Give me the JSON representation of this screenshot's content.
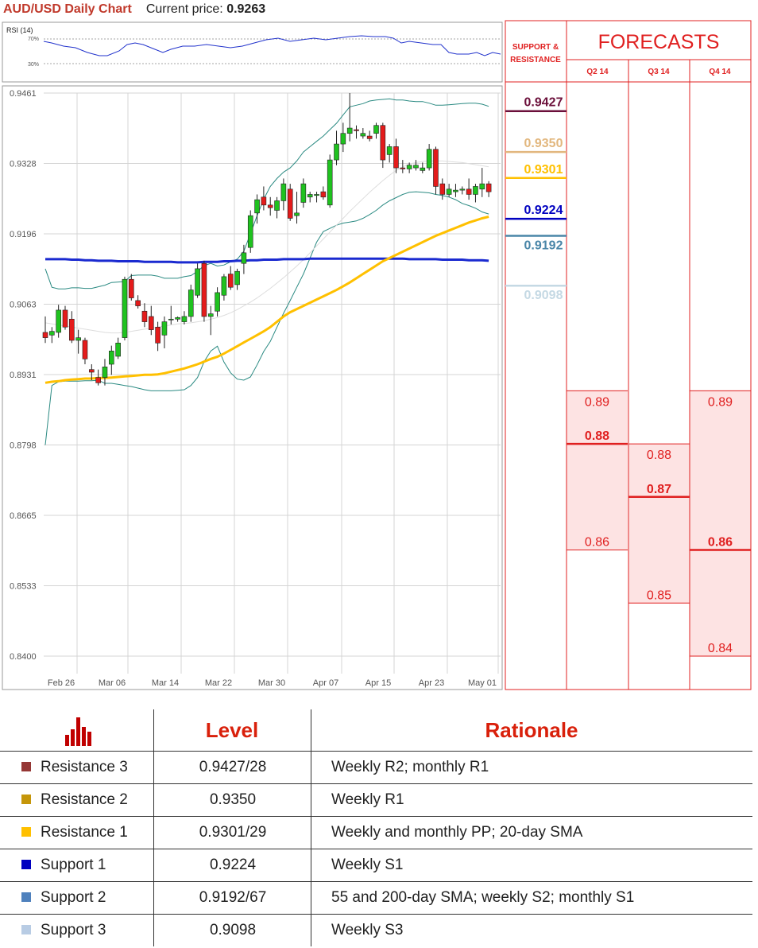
{
  "header": {
    "title": "AUD/USD Daily Chart",
    "current_price_label": "Current price:",
    "current_price": "0.9263"
  },
  "rsi": {
    "label": "RSI (14)",
    "levels": [
      "70%",
      "30%"
    ]
  },
  "chart_data": {
    "type": "candlestick",
    "y_ticks": [
      "0.9461",
      "0.9328",
      "0.9196",
      "0.9063",
      "0.8931",
      "0.8798",
      "0.8665",
      "0.8533",
      "0.8400"
    ],
    "ylim": [
      0.84,
      0.9461
    ],
    "x_ticks": [
      "Feb 26",
      "Mar 06",
      "Mar 14",
      "Mar 22",
      "Mar 30",
      "Apr 07",
      "Apr 15",
      "Apr 23",
      "May 01"
    ],
    "candles": [
      [
        0.901,
        0.904,
        0.899,
        0.9
      ],
      [
        0.9005,
        0.902,
        0.899,
        0.9012
      ],
      [
        0.901,
        0.9062,
        0.9,
        0.9052
      ],
      [
        0.9052,
        0.906,
        0.9015,
        0.902
      ],
      [
        0.9035,
        0.905,
        0.899,
        0.8995
      ],
      [
        0.8995,
        0.9015,
        0.897,
        0.9
      ],
      [
        0.8995,
        0.9,
        0.895,
        0.896
      ],
      [
        0.894,
        0.895,
        0.892,
        0.8935
      ],
      [
        0.8925,
        0.894,
        0.891,
        0.8915
      ],
      [
        0.8925,
        0.896,
        0.891,
        0.8945
      ],
      [
        0.895,
        0.8985,
        0.893,
        0.8975
      ],
      [
        0.8965,
        0.9,
        0.896,
        0.899
      ],
      [
        0.9,
        0.9115,
        0.8995,
        0.911
      ],
      [
        0.911,
        0.912,
        0.907,
        0.9075
      ],
      [
        0.907,
        0.908,
        0.9055,
        0.906
      ],
      [
        0.905,
        0.9065,
        0.902,
        0.903
      ],
      [
        0.904,
        0.906,
        0.9005,
        0.9015
      ],
      [
        0.902,
        0.903,
        0.8975,
        0.899
      ],
      [
        0.9005,
        0.904,
        0.898,
        0.903
      ],
      [
        0.9035,
        0.906,
        0.9025,
        0.9035
      ],
      [
        0.9035,
        0.904,
        0.903,
        0.9038
      ],
      [
        0.903,
        0.905,
        0.9025,
        0.904
      ],
      [
        0.904,
        0.91,
        0.903,
        0.909
      ],
      [
        0.908,
        0.914,
        0.9075,
        0.913
      ],
      [
        0.914,
        0.9145,
        0.903,
        0.904
      ],
      [
        0.904,
        0.906,
        0.9005,
        0.9045
      ],
      [
        0.905,
        0.9095,
        0.904,
        0.9085
      ],
      [
        0.908,
        0.912,
        0.907,
        0.9115
      ],
      [
        0.912,
        0.9135,
        0.909,
        0.9095
      ],
      [
        0.91,
        0.913,
        0.909,
        0.9125
      ],
      [
        0.914,
        0.9175,
        0.912,
        0.916
      ],
      [
        0.917,
        0.924,
        0.916,
        0.923
      ],
      [
        0.9235,
        0.927,
        0.9215,
        0.926
      ],
      [
        0.9265,
        0.9285,
        0.924,
        0.925
      ],
      [
        0.925,
        0.9265,
        0.923,
        0.9245
      ],
      [
        0.924,
        0.9265,
        0.9225,
        0.9258
      ],
      [
        0.9258,
        0.93,
        0.924,
        0.929
      ],
      [
        0.928,
        0.929,
        0.922,
        0.9225
      ],
      [
        0.923,
        0.9275,
        0.9215,
        0.9235
      ],
      [
        0.9255,
        0.93,
        0.9245,
        0.929
      ],
      [
        0.9265,
        0.9275,
        0.9255,
        0.927
      ],
      [
        0.9268,
        0.9275,
        0.9255,
        0.927
      ],
      [
        0.9275,
        0.9285,
        0.926,
        0.9265
      ],
      [
        0.925,
        0.9345,
        0.9245,
        0.9335
      ],
      [
        0.9335,
        0.939,
        0.9325,
        0.9365
      ],
      [
        0.9365,
        0.9405,
        0.935,
        0.9385
      ],
      [
        0.9385,
        0.9461,
        0.937,
        0.9395
      ],
      [
        0.9392,
        0.94,
        0.9375,
        0.939
      ],
      [
        0.938,
        0.9395,
        0.9375,
        0.9385
      ],
      [
        0.938,
        0.939,
        0.937,
        0.9375
      ],
      [
        0.9385,
        0.9405,
        0.9375,
        0.94
      ],
      [
        0.94,
        0.9405,
        0.932,
        0.9335
      ],
      [
        0.9345,
        0.9365,
        0.933,
        0.936
      ],
      [
        0.936,
        0.9375,
        0.931,
        0.932
      ],
      [
        0.932,
        0.9335,
        0.931,
        0.9318
      ],
      [
        0.9318,
        0.933,
        0.931,
        0.9325
      ],
      [
        0.932,
        0.9335,
        0.9315,
        0.9325
      ],
      [
        0.9315,
        0.933,
        0.931,
        0.932
      ],
      [
        0.932,
        0.9365,
        0.9315,
        0.9355
      ],
      [
        0.9355,
        0.936,
        0.927,
        0.9285
      ],
      [
        0.929,
        0.93,
        0.926,
        0.927
      ],
      [
        0.927,
        0.929,
        0.9265,
        0.928
      ],
      [
        0.9275,
        0.929,
        0.9265,
        0.9278
      ],
      [
        0.9278,
        0.9285,
        0.927,
        0.928
      ],
      [
        0.928,
        0.93,
        0.926,
        0.927
      ],
      [
        0.927,
        0.929,
        0.9255,
        0.9285
      ],
      [
        0.928,
        0.932,
        0.9265,
        0.929
      ],
      [
        0.929,
        0.9295,
        0.9265,
        0.9275
      ]
    ],
    "sma200": [
      0.9148,
      0.9148,
      0.9148,
      0.9148,
      0.9147,
      0.9147,
      0.9146,
      0.9146,
      0.9145,
      0.9145,
      0.9145,
      0.9144,
      0.9144,
      0.9144,
      0.9144,
      0.9143,
      0.9143,
      0.9143,
      0.9143,
      0.9143,
      0.9142,
      0.9142,
      0.9142,
      0.9142,
      0.9143,
      0.9143,
      0.9143,
      0.9144,
      0.9144,
      0.9145,
      0.9145,
      0.9146,
      0.9146,
      0.9147,
      0.9147,
      0.9147,
      0.9148,
      0.9148,
      0.9148,
      0.9148,
      0.9149,
      0.9149,
      0.9149,
      0.9149,
      0.9149,
      0.9149,
      0.9149,
      0.9149,
      0.9149,
      0.9149,
      0.9149,
      0.9149,
      0.9149,
      0.9149,
      0.9149,
      0.9148,
      0.9148,
      0.9148,
      0.9148,
      0.9148,
      0.9147,
      0.9147,
      0.9147,
      0.9147,
      0.9146,
      0.9146,
      0.9146,
      0.9145
    ],
    "sma55": [
      0.8915,
      0.8917,
      0.8918,
      0.892,
      0.8921,
      0.8922,
      0.8923,
      0.8923,
      0.8924,
      0.8924,
      0.8925,
      0.8926,
      0.8927,
      0.8928,
      0.8929,
      0.893,
      0.893,
      0.8931,
      0.8933,
      0.8936,
      0.8939,
      0.8942,
      0.8946,
      0.895,
      0.8955,
      0.896,
      0.8964,
      0.897,
      0.8977,
      0.8984,
      0.8991,
      0.8998,
      0.9005,
      0.9012,
      0.902,
      0.903,
      0.904,
      0.9048,
      0.9054,
      0.906,
      0.9066,
      0.9072,
      0.9078,
      0.9084,
      0.909,
      0.9097,
      0.9104,
      0.9112,
      0.912,
      0.9128,
      0.9136,
      0.9144,
      0.915,
      0.9156,
      0.9162,
      0.9168,
      0.9174,
      0.918,
      0.9186,
      0.9192,
      0.9197,
      0.9202,
      0.9207,
      0.9212,
      0.9217,
      0.9221,
      0.9225,
      0.9228
    ],
    "sma20": [
      0.9028,
      0.9026,
      0.9024,
      0.9022,
      0.902,
      0.9018,
      0.9016,
      0.9014,
      0.9012,
      0.901,
      0.9009,
      0.9009,
      0.901,
      0.9012,
      0.9014,
      0.9016,
      0.9018,
      0.902,
      0.9022,
      0.9024,
      0.9026,
      0.9027,
      0.9028,
      0.903,
      0.9032,
      0.9035,
      0.9038,
      0.9042,
      0.9047,
      0.9053,
      0.906,
      0.9067,
      0.9075,
      0.9084,
      0.9093,
      0.9103,
      0.9113,
      0.9124,
      0.9135,
      0.9147,
      0.916,
      0.9173,
      0.9186,
      0.9199,
      0.9212,
      0.9225,
      0.9238,
      0.925,
      0.9262,
      0.9274,
      0.9285,
      0.9296,
      0.9306,
      0.9315,
      0.9322,
      0.9327,
      0.933,
      0.9332,
      0.9333,
      0.9333,
      0.9333,
      0.9332,
      0.9331,
      0.933,
      0.9328,
      0.9326,
      0.9324,
      0.9322
    ],
    "bb_upper": [
      0.913,
      0.9095,
      0.9092,
      0.9092,
      0.9094,
      0.9094,
      0.9093,
      0.9093,
      0.9096,
      0.9099,
      0.9104,
      0.9105,
      0.9106,
      0.9117,
      0.9118,
      0.9118,
      0.9118,
      0.9116,
      0.9112,
      0.9112,
      0.9112,
      0.9115,
      0.9117,
      0.9125,
      0.9136,
      0.914,
      0.9135,
      0.9137,
      0.9143,
      0.9148,
      0.9163,
      0.9196,
      0.923,
      0.9261,
      0.9285,
      0.93,
      0.9312,
      0.932,
      0.9333,
      0.935,
      0.936,
      0.937,
      0.938,
      0.9392,
      0.9404,
      0.942,
      0.9435,
      0.9438,
      0.9441,
      0.9446,
      0.9448,
      0.9449,
      0.945,
      0.9448,
      0.9448,
      0.9446,
      0.9445,
      0.9445,
      0.9442,
      0.9438,
      0.9438,
      0.9439,
      0.944,
      0.9441,
      0.9442,
      0.9442,
      0.944,
      0.9436
    ],
    "bb_lower": [
      0.8798,
      0.891,
      0.8917,
      0.8918,
      0.8918,
      0.8918,
      0.8919,
      0.8919,
      0.892,
      0.8914,
      0.8914,
      0.8912,
      0.891,
      0.8908,
      0.8905,
      0.8902,
      0.89,
      0.89,
      0.89,
      0.89,
      0.8901,
      0.8902,
      0.891,
      0.8925,
      0.8955,
      0.8975,
      0.8984,
      0.8954,
      0.8934,
      0.8922,
      0.892,
      0.8926,
      0.8949,
      0.8974,
      0.8993,
      0.902,
      0.9046,
      0.907,
      0.9095,
      0.912,
      0.915,
      0.918,
      0.92,
      0.9206,
      0.9212,
      0.9216,
      0.9218,
      0.922,
      0.9225,
      0.9232,
      0.924,
      0.925,
      0.9258,
      0.9264,
      0.927,
      0.9274,
      0.9275,
      0.9274,
      0.9273,
      0.927,
      0.9268,
      0.9265,
      0.926,
      0.9253,
      0.9249,
      0.9244,
      0.9237,
      0.9233
    ]
  },
  "sr": {
    "header": "SUPPORT & RESISTANCE",
    "levels": [
      {
        "value": 0.9427,
        "label": "0.9427",
        "color": "#6b0f3a"
      },
      {
        "value": 0.935,
        "label": "0.9350",
        "color": "#e2b77e"
      },
      {
        "value": 0.9301,
        "label": "0.9301",
        "color": "#ffc000"
      },
      {
        "value": 0.9224,
        "label": "0.9224",
        "color": "#0000c0"
      },
      {
        "value": 0.9192,
        "label": "0.9192",
        "color": "#4a86a8"
      },
      {
        "value": 0.9098,
        "label": "0.9098",
        "color": "#c5d9e4"
      }
    ]
  },
  "forecasts": {
    "title": "FORECASTS",
    "quarters": [
      {
        "label": "Q2 14",
        "high": "0.89",
        "main": "0.88",
        "low": "0.86",
        "high_v": 0.89,
        "main_v": 0.88,
        "low_v": 0.86
      },
      {
        "label": "Q3 14",
        "high": "0.88",
        "main": "0.87",
        "low": "0.85",
        "high_v": 0.88,
        "main_v": 0.87,
        "low_v": 0.85
      },
      {
        "label": "Q4 14",
        "high": "0.89",
        "main": "0.86",
        "low": "0.84",
        "high_v": 0.89,
        "main_v": 0.86,
        "low_v": 0.84
      }
    ]
  },
  "table": {
    "headers": {
      "level": "Level",
      "rationale": "Rationale"
    },
    "rows": [
      {
        "name": "Resistance 3",
        "level": "0.9427/28",
        "rationale": "Weekly R2; monthly R1",
        "color": "#953735"
      },
      {
        "name": "Resistance 2",
        "level": "0.9350",
        "rationale": "Weekly R1",
        "color": "#c5960a"
      },
      {
        "name": "Resistance 1",
        "level": "0.9301/29",
        "rationale": "Weekly and monthly PP; 20-day SMA",
        "color": "#ffc000"
      },
      {
        "name": "Support 1",
        "level": "0.9224",
        "rationale": "Weekly S1",
        "color": "#0000c0"
      },
      {
        "name": "Support 2",
        "level": "0.9192/67",
        "rationale": "55 and 200-day SMA; weekly S2; monthly S1",
        "color": "#4f81bd"
      },
      {
        "name": "Support 3",
        "level": "0.9098",
        "rationale": "Weekly S3",
        "color": "#b8cce4"
      }
    ]
  }
}
